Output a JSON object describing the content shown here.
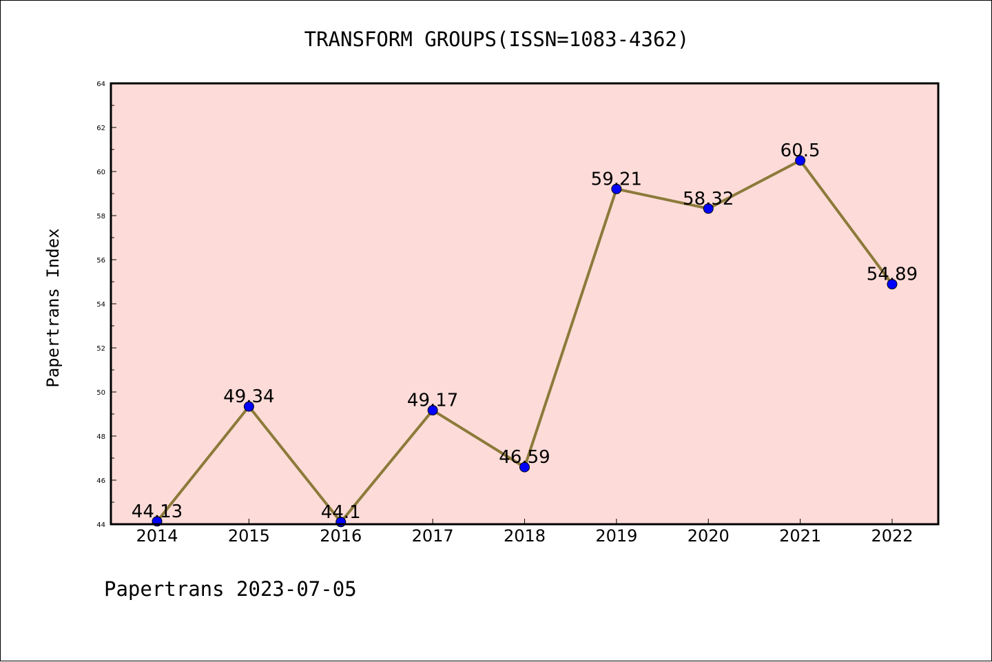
{
  "colors": {
    "plot_background": "#fddbd8",
    "line": "#8c7a3a",
    "marker": "#0000ff",
    "marker_edge": "#000000"
  },
  "footer": "Papertrans 2023-07-05",
  "chart_data": {
    "type": "line",
    "title": "TRANSFORM GROUPS(ISSN=1083-4362)",
    "xlabel": "",
    "ylabel": "Papertrans Index",
    "categories": [
      "2014",
      "2015",
      "2016",
      "2017",
      "2018",
      "2019",
      "2020",
      "2021",
      "2022"
    ],
    "series": [
      {
        "values": [
          44.13,
          49.34,
          44.1,
          49.17,
          46.59,
          59.21,
          58.32,
          60.5,
          54.89
        ],
        "data_labels": [
          "44.13",
          "49.34",
          "44.1",
          "49.17",
          "46.59",
          "59.21",
          "58.32",
          "60.5",
          "54.89"
        ]
      }
    ],
    "ylim": [
      44,
      64
    ],
    "yticks": [
      44,
      46,
      48,
      50,
      52,
      54,
      56,
      58,
      60,
      62,
      64
    ],
    "grid": false,
    "legend": "none"
  }
}
